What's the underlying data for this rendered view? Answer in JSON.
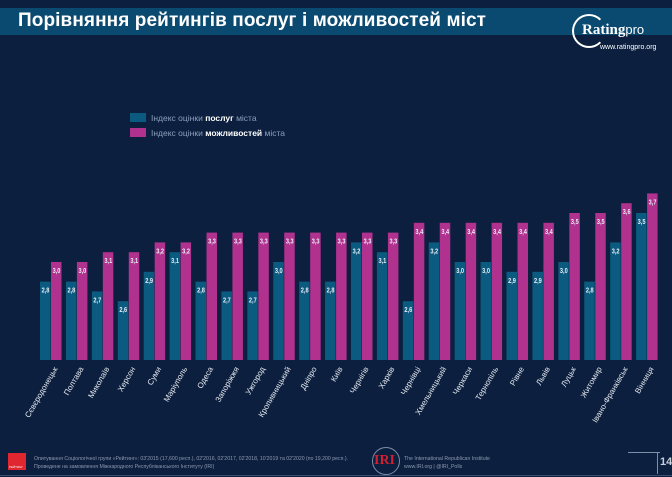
{
  "header": {
    "title": "Порівняння рейтингів послуг і можливостей міст",
    "logo_text": "Rating",
    "logo_suffix": "pro",
    "logo_url": "www.ratingpro.org"
  },
  "legend": {
    "items": [
      {
        "prefix": "Індекс оцінки ",
        "bold": "послуг",
        "suffix": " міста",
        "color": "#0b5a80"
      },
      {
        "prefix": "Індекс оцінки ",
        "bold": "можливостей",
        "suffix": " міста",
        "color": "#b0318e"
      }
    ]
  },
  "chart_data": {
    "type": "bar",
    "title": "Порівняння рейтингів послуг і можливостей міст",
    "xlabel": "",
    "ylabel": "",
    "ylim": [
      2.0,
      3.8
    ],
    "grid": false,
    "legend_position": "top-left",
    "categories": [
      "Сєвєродонецьк",
      "Полтава",
      "Миколаїв",
      "Херсон",
      "Суми",
      "Маріуполь",
      "Одеса",
      "Запоріжжя",
      "Ужгород",
      "Кропивницький",
      "Дніпро",
      "Київ",
      "Чернігів",
      "Харків",
      "Чернівці",
      "Хмельницький",
      "Черкаси",
      "Тернопіль",
      "Рівне",
      "Львів",
      "Луцьк",
      "Житомир",
      "Івано-Франківськ",
      "Вінниця"
    ],
    "series": [
      {
        "name": "Індекс оцінки послуг міста",
        "color": "#0b5a80",
        "values": [
          2.8,
          2.8,
          2.7,
          2.6,
          2.9,
          3.1,
          2.8,
          2.7,
          2.7,
          3.0,
          2.8,
          2.8,
          3.2,
          3.1,
          2.6,
          3.2,
          3.0,
          3.0,
          2.9,
          2.9,
          3.0,
          2.8,
          3.2,
          3.5
        ],
        "labels": [
          "2,8",
          "2,8",
          "2,7",
          "2,6",
          "2,9",
          "3,1",
          "2,8",
          "2,7",
          "2,7",
          "3,0",
          "2,8",
          "2,8",
          "3,2",
          "3,1",
          "2,6",
          "3,2",
          "3,0",
          "3,0",
          "2,9",
          "2,9",
          "3,0",
          "2,8",
          "3,2",
          "3,5"
        ]
      },
      {
        "name": "Індекс оцінки можливостей міста",
        "color": "#b0318e",
        "values": [
          3.0,
          3.0,
          3.1,
          3.1,
          3.2,
          3.2,
          3.3,
          3.3,
          3.3,
          3.3,
          3.3,
          3.3,
          3.3,
          3.3,
          3.4,
          3.4,
          3.4,
          3.4,
          3.4,
          3.4,
          3.5,
          3.5,
          3.6,
          3.7
        ],
        "labels": [
          "3,0",
          "3,0",
          "3,1",
          "3,1",
          "3,2",
          "3,2",
          "3,3",
          "3,3",
          "3,3",
          "3,3",
          "3,3",
          "3,3",
          "3,3",
          "3,3",
          "3,4",
          "3,4",
          "3,4",
          "3,4",
          "3,4",
          "3,4",
          "3,5",
          "3,5",
          "3,6",
          "3,7"
        ]
      }
    ]
  },
  "footer": {
    "rating_logo_text": "РЕЙТИНГ",
    "source_line1": "Опитування Соціологічної групи «Рейтинг»: 03'2015 (17,600 респ.), 02'2016, 02'2017, 02'2018, 10'2019 та 02'2020 (по 19,200 респ.).",
    "source_line2": "Проведене на замовлення Міжнародного Республіканського Інституту (IRI)",
    "iri_logo": "IRI",
    "iri_line1": "The International Republican Institute",
    "iri_line2": "www.IRI.org | @IRI_Polls",
    "page_number": "14"
  }
}
